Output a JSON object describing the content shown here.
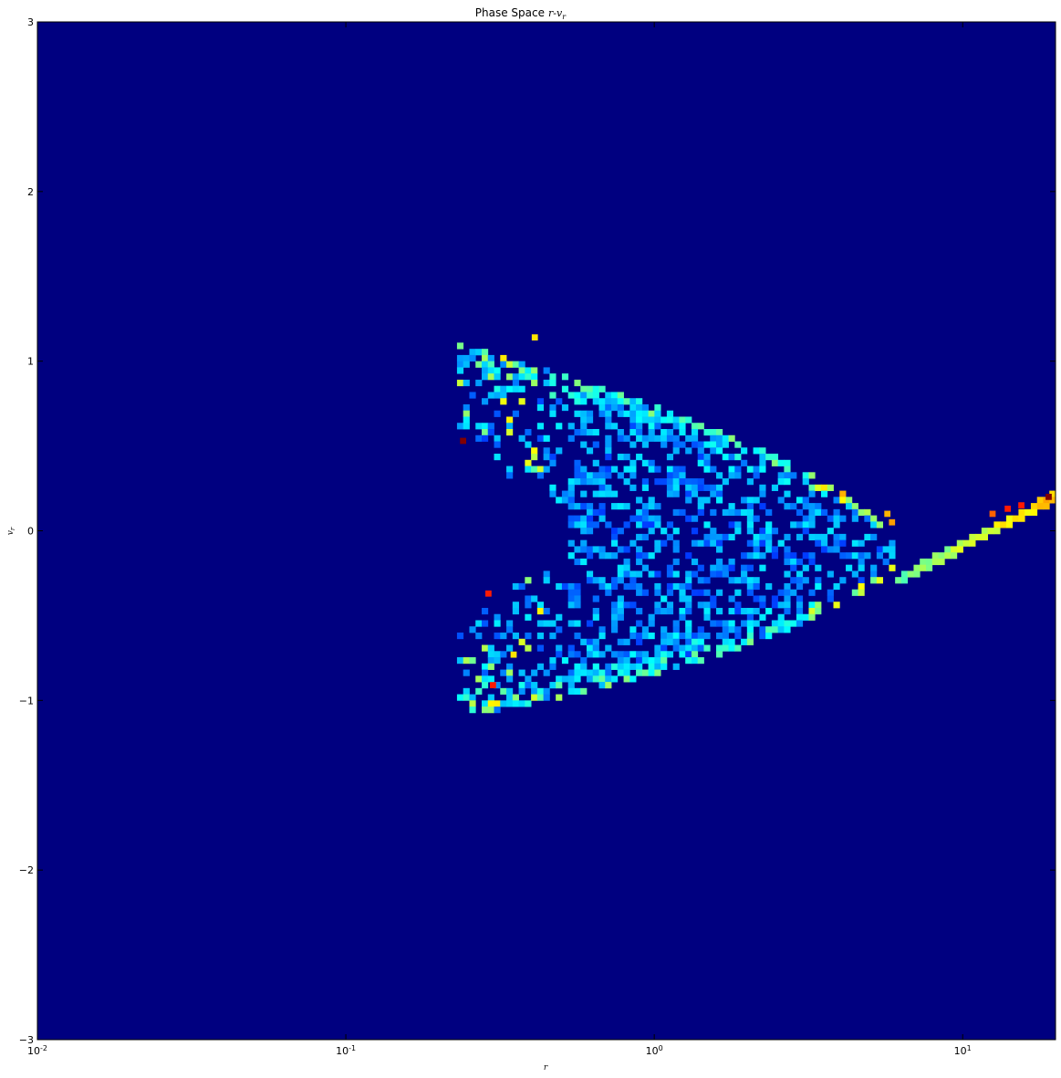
{
  "chart_data": {
    "type": "heatmap",
    "title": {
      "text": "Phase Space",
      "math": "r-v",
      "math_sub": "r"
    },
    "xlabel": "r",
    "ylabel": "v",
    "ylabel_sub": "r",
    "x_scale": "log",
    "xlim": [
      0.01,
      20
    ],
    "ylim": [
      -3,
      3
    ],
    "x_ticks": [
      {
        "value": 0.01,
        "base": "10",
        "exp": "-2"
      },
      {
        "value": 0.1,
        "base": "10",
        "exp": "-1"
      },
      {
        "value": 1,
        "base": "10",
        "exp": "0"
      },
      {
        "value": 10,
        "base": "10",
        "exp": "1"
      }
    ],
    "y_ticks": [
      {
        "value": 3,
        "label": "3"
      },
      {
        "value": 2,
        "label": "2"
      },
      {
        "value": 1,
        "label": "1"
      },
      {
        "value": 0,
        "label": "0"
      },
      {
        "value": -1,
        "label": "−1"
      },
      {
        "value": -2,
        "label": "−2"
      },
      {
        "value": -3,
        "label": "−3"
      }
    ],
    "colormap": "jet",
    "background_color": "#000080",
    "grid": false,
    "legend": "none",
    "bins": {
      "x": 165,
      "y": 165
    },
    "density_model": {
      "description_of_features": "bounded orbital region plus outgoing stream",
      "inner_edge_r": 0.23,
      "outer_turning_r": 6.2,
      "vmax_at_inner": 1.1,
      "stream_start": {
        "r": 6.0,
        "v": -0.3
      },
      "stream_end": {
        "r": 20,
        "v": 0.2
      }
    },
    "hot_cells": [
      {
        "r": 0.24,
        "v": 0.53,
        "level": 1.0
      },
      {
        "r": 0.29,
        "v": -0.37,
        "level": 0.85
      },
      {
        "r": 0.3,
        "v": -0.91,
        "level": 0.85
      },
      {
        "r": 5.9,
        "v": 0.05,
        "level": 0.72
      },
      {
        "r": 5.7,
        "v": 0.1,
        "level": 0.7
      },
      {
        "r": 19.0,
        "v": 0.2,
        "level": 1.0
      },
      {
        "r": 14.0,
        "v": 0.13,
        "level": 0.85
      },
      {
        "r": 15.5,
        "v": 0.15,
        "level": 0.85
      },
      {
        "r": 12.5,
        "v": 0.1,
        "level": 0.78
      },
      {
        "r": 0.41,
        "v": 1.14,
        "level": 0.65
      },
      {
        "r": 0.35,
        "v": -0.73,
        "level": 0.65
      }
    ]
  }
}
